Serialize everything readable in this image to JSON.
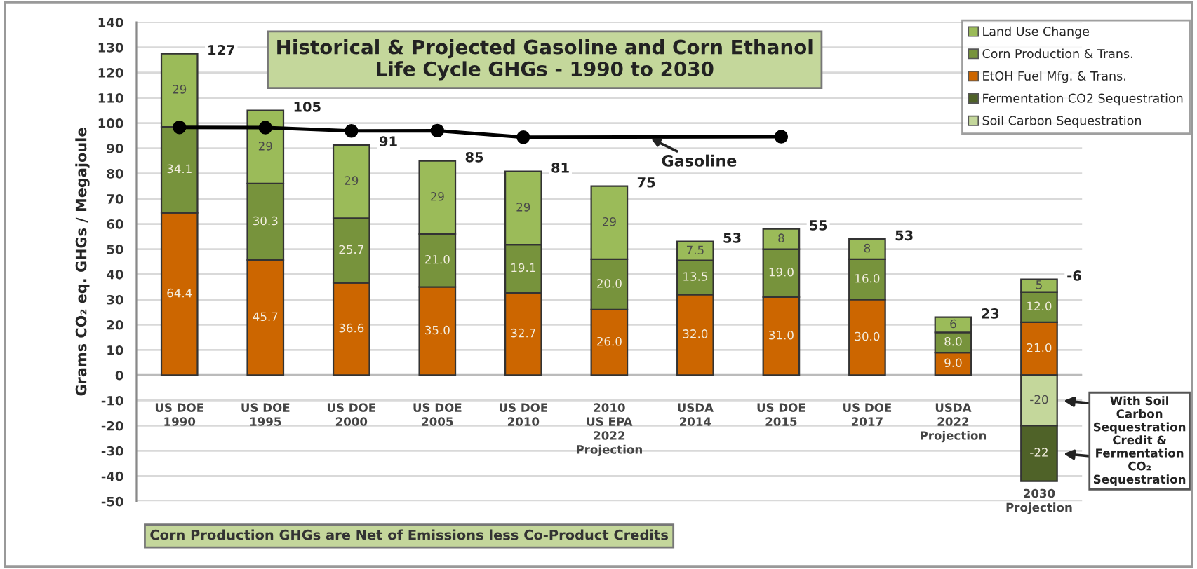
{
  "chart_data": {
    "type": "bar",
    "stacked": true,
    "title": "Historical & Projected Gasoline and Corn Ethanol Life Cycle GHGs - 1990 to 2030",
    "ylabel": "Grams CO₂ eq. GHGs / Megajoule",
    "categories": [
      "US DOE\n1990",
      "US DOE\n1995",
      "US DOE\n2000",
      "US DOE\n2005",
      "US DOE\n2010",
      "2010\nUS EPA\n2022\nProjection",
      "USDA\n2014",
      "US DOE\n2015",
      "US DOE\n2017",
      "USDA\n2022\nProjection",
      "2030\nProjection"
    ],
    "series": [
      {
        "name": "EtOH Fuel Mfg. & Trans.",
        "color": "#cc6600",
        "values": [
          64.4,
          45.7,
          36.6,
          35.0,
          32.7,
          26.0,
          32.0,
          31.0,
          30.0,
          9.0,
          21.0
        ],
        "value_labels": [
          "64.4",
          "45.7",
          "36.6",
          "35.0",
          "32.7",
          "26.0",
          "32.0",
          "31.0",
          "30.0",
          "9.0",
          "21.0"
        ]
      },
      {
        "name": "Corn Production & Trans.",
        "color": "#77933c",
        "values": [
          34.1,
          30.3,
          25.7,
          21.0,
          19.1,
          20.0,
          13.5,
          19.0,
          16.0,
          8.0,
          12.0
        ],
        "value_labels": [
          "34.1",
          "30.3",
          "25.7",
          "21.0",
          "19.1",
          "20.0",
          "13.5",
          "19.0",
          "16.0",
          "8.0",
          "12.0"
        ]
      },
      {
        "name": "Land Use Change",
        "color": "#9bbb59",
        "values": [
          29,
          29,
          29,
          29,
          29,
          29,
          7.5,
          8,
          8,
          6,
          5
        ],
        "value_labels": [
          "29",
          "29",
          "29",
          "29",
          "29",
          "29",
          "7.5",
          "8",
          "8",
          "6",
          "5"
        ]
      },
      {
        "name": "Soil Carbon Sequestration",
        "color": "#c4d79b",
        "values": [
          null,
          null,
          null,
          null,
          null,
          null,
          null,
          null,
          null,
          null,
          -20
        ],
        "value_labels": [
          null,
          null,
          null,
          null,
          null,
          null,
          null,
          null,
          null,
          null,
          "-20"
        ]
      },
      {
        "name": "Fermentation CO2 Sequestration",
        "color": "#4f6228",
        "values": [
          null,
          null,
          null,
          null,
          null,
          null,
          null,
          null,
          null,
          null,
          -22
        ],
        "value_labels": [
          null,
          null,
          null,
          null,
          null,
          null,
          null,
          null,
          null,
          null,
          "-22"
        ]
      },
      {
        "type": "line",
        "color": "#000000",
        "marker": "circle",
        "values": [
          98.3,
          98.2,
          96.9,
          97.0,
          94.4,
          null,
          null,
          94.6,
          null,
          null,
          null
        ]
      }
    ],
    "totals": [
      "127",
      "105",
      "91",
      "85",
      "81",
      "75",
      "53",
      "55",
      "53",
      "23",
      "-6"
    ],
    "ylim": [
      -50,
      140
    ],
    "yticks": [
      -50,
      -40,
      -30,
      -20,
      -10,
      0,
      10,
      20,
      30,
      40,
      50,
      60,
      70,
      80,
      90,
      100,
      110,
      120,
      130,
      140
    ],
    "grid": "y",
    "legend": "top right",
    "annotations": [
      "Gasoline",
      "Corn Production GHGs are Net of Emissions less Co-Product Credits",
      "With Soil\nCarbon\nSequestration\nCredit &\nFermentation\nCO₂\nSequestration"
    ]
  }
}
